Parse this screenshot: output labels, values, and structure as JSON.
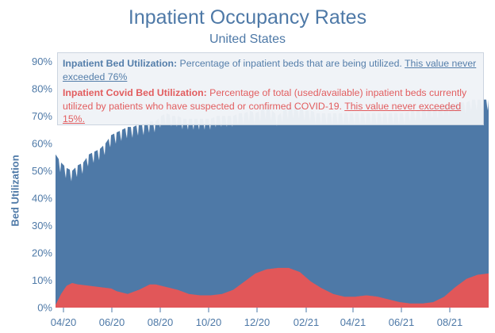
{
  "header": {
    "title": "Inpatient Occupancy Rates",
    "subtitle": "United States"
  },
  "annotation": {
    "bed_label": "Inpatient Bed Utilization:",
    "bed_text": " Percentage of inpatient beds that are being utilized. ",
    "bed_note": "This value never exceeded 76%",
    "covid_label": "Inpatient Covid Bed Utilization:",
    "covid_text": " Percentage of total (used/available) inpatient beds currently utilized by patients who have suspected or confirmed COVID-19. ",
    "covid_note": "This value never exceeded 15%."
  },
  "colors": {
    "bed": "#4e79a7",
    "covid": "#e15759"
  },
  "chart_data": {
    "type": "area",
    "title": "Inpatient Occupancy Rates",
    "subtitle": "United States",
    "ylabel": "Bed Utilization",
    "xlabel": "",
    "ylim": [
      0,
      0.95
    ],
    "yticks": [
      0,
      0.1,
      0.2,
      0.3,
      0.4,
      0.5,
      0.6,
      0.7,
      0.8,
      0.9
    ],
    "ytick_labels": [
      "0%",
      "10%",
      "20%",
      "30%",
      "40%",
      "50%",
      "60%",
      "70%",
      "80%",
      "90%"
    ],
    "xlim": [
      "2020-03-22",
      "2021-09-19"
    ],
    "xticks": [
      "2020-04-01",
      "2020-06-01",
      "2020-08-01",
      "2020-10-01",
      "2020-12-01",
      "2021-02-01",
      "2021-04-01",
      "2021-06-01",
      "2021-08-01"
    ],
    "xtick_labels": [
      "04/20",
      "06/20",
      "08/20",
      "10/20",
      "12/20",
      "02/21",
      "04/21",
      "06/21",
      "08/21"
    ],
    "grid": false,
    "series": [
      {
        "name": "Inpatient Bed Utilization",
        "weekly_dip": 0.04,
        "x": [
          "2020-03-22",
          "2020-03-29",
          "2020-04-05",
          "2020-04-12",
          "2020-04-19",
          "2020-04-26",
          "2020-05-03",
          "2020-05-10",
          "2020-05-17",
          "2020-05-24",
          "2020-05-31",
          "2020-06-07",
          "2020-06-14",
          "2020-06-21",
          "2020-06-28",
          "2020-07-05",
          "2020-07-12",
          "2020-07-19",
          "2020-07-26",
          "2020-08-02",
          "2020-08-09",
          "2020-08-16",
          "2020-08-23",
          "2020-08-30",
          "2020-09-06",
          "2020-09-13",
          "2020-09-20",
          "2020-09-27",
          "2020-10-04",
          "2020-10-11",
          "2020-10-18",
          "2020-10-25",
          "2020-11-01",
          "2020-11-08",
          "2020-11-15",
          "2020-11-22",
          "2020-11-29",
          "2020-12-06",
          "2020-12-13",
          "2020-12-20",
          "2020-12-27",
          "2021-01-03",
          "2021-01-10",
          "2021-01-17",
          "2021-01-24",
          "2021-01-31",
          "2021-02-07",
          "2021-02-14",
          "2021-02-21",
          "2021-02-28",
          "2021-03-07",
          "2021-03-14",
          "2021-03-21",
          "2021-03-28",
          "2021-04-04",
          "2021-04-11",
          "2021-04-18",
          "2021-04-25",
          "2021-05-02",
          "2021-05-09",
          "2021-05-16",
          "2021-05-23",
          "2021-05-30",
          "2021-06-06",
          "2021-06-13",
          "2021-06-20",
          "2021-06-27",
          "2021-07-04",
          "2021-07-11",
          "2021-07-18",
          "2021-07-25",
          "2021-08-01",
          "2021-08-08",
          "2021-08-15",
          "2021-08-22",
          "2021-08-29",
          "2021-09-05",
          "2021-09-12",
          "2021-09-19"
        ],
        "values": [
          0.56,
          0.53,
          0.51,
          0.5,
          0.52,
          0.53,
          0.56,
          0.57,
          0.58,
          0.6,
          0.63,
          0.64,
          0.65,
          0.66,
          0.66,
          0.67,
          0.67,
          0.68,
          0.68,
          0.7,
          0.71,
          0.7,
          0.7,
          0.69,
          0.69,
          0.69,
          0.69,
          0.69,
          0.69,
          0.7,
          0.7,
          0.7,
          0.7,
          0.71,
          0.71,
          0.72,
          0.71,
          0.72,
          0.73,
          0.72,
          0.7,
          0.72,
          0.73,
          0.73,
          0.73,
          0.72,
          0.72,
          0.71,
          0.71,
          0.71,
          0.71,
          0.71,
          0.71,
          0.71,
          0.71,
          0.71,
          0.71,
          0.71,
          0.71,
          0.71,
          0.71,
          0.71,
          0.71,
          0.71,
          0.72,
          0.72,
          0.72,
          0.73,
          0.73,
          0.73,
          0.74,
          0.74,
          0.75,
          0.75,
          0.75,
          0.76,
          0.76,
          0.76,
          0.76
        ]
      },
      {
        "name": "Inpatient Covid Bed Utilization",
        "x": [
          "2020-03-22",
          "2020-03-29",
          "2020-04-05",
          "2020-04-12",
          "2020-04-19",
          "2020-05-03",
          "2020-05-17",
          "2020-05-31",
          "2020-06-07",
          "2020-06-21",
          "2020-07-05",
          "2020-07-19",
          "2020-07-26",
          "2020-08-09",
          "2020-08-23",
          "2020-09-06",
          "2020-09-20",
          "2020-10-04",
          "2020-10-18",
          "2020-11-01",
          "2020-11-15",
          "2020-11-29",
          "2020-12-13",
          "2020-12-27",
          "2021-01-10",
          "2021-01-24",
          "2021-02-07",
          "2021-02-21",
          "2021-03-07",
          "2021-03-21",
          "2021-04-04",
          "2021-04-18",
          "2021-05-02",
          "2021-05-16",
          "2021-05-30",
          "2021-06-13",
          "2021-06-27",
          "2021-07-11",
          "2021-07-25",
          "2021-08-08",
          "2021-08-22",
          "2021-09-05",
          "2021-09-19"
        ],
        "values": [
          0.01,
          0.05,
          0.08,
          0.09,
          0.085,
          0.08,
          0.075,
          0.07,
          0.06,
          0.05,
          0.065,
          0.085,
          0.085,
          0.075,
          0.065,
          0.05,
          0.045,
          0.045,
          0.05,
          0.065,
          0.095,
          0.125,
          0.14,
          0.145,
          0.145,
          0.13,
          0.095,
          0.07,
          0.05,
          0.04,
          0.04,
          0.045,
          0.04,
          0.03,
          0.02,
          0.015,
          0.015,
          0.02,
          0.04,
          0.075,
          0.105,
          0.12,
          0.125
        ]
      }
    ]
  }
}
